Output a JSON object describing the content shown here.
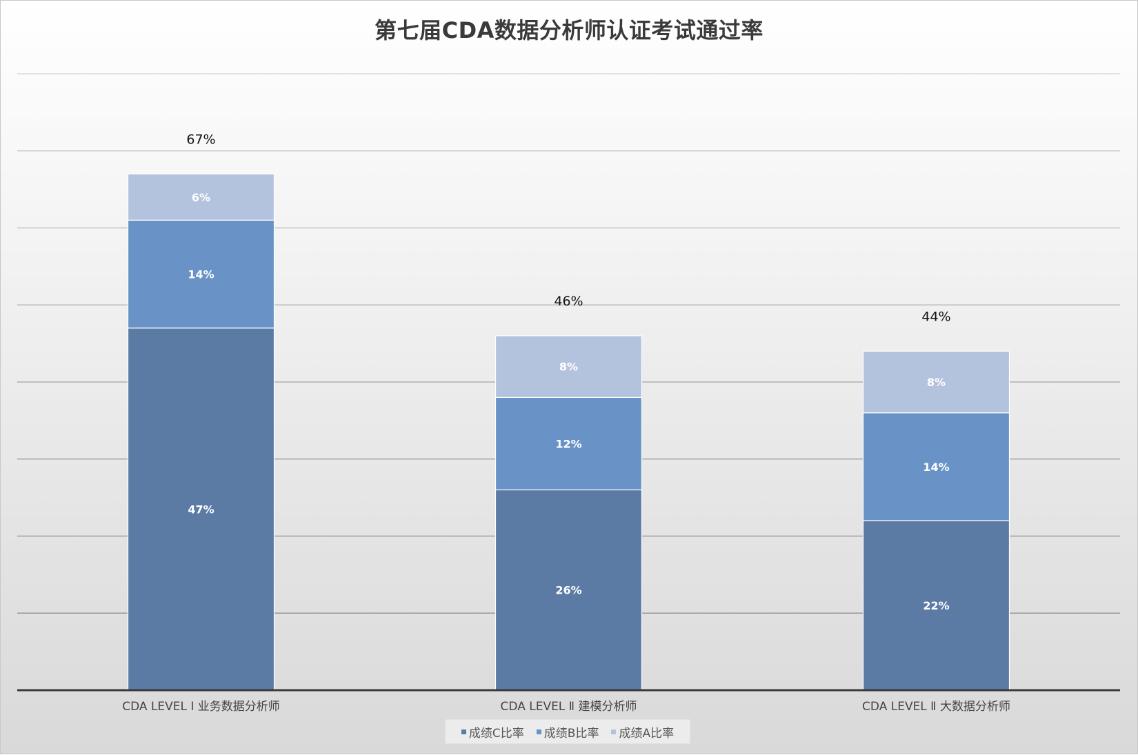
{
  "chart_data": {
    "type": "bar",
    "stacked": true,
    "title": "第七届CDA数据分析师认证考试通过率",
    "categories": [
      "CDA LEVEL Ⅰ 业务数据分析师",
      "CDA LEVEL Ⅱ 建模分析师",
      "CDA LEVEL Ⅱ 大数据分析师"
    ],
    "series": [
      {
        "name": "成绩C比率",
        "color": "#5b7ba5",
        "values": [
          47,
          26,
          22
        ],
        "labels": [
          "47%",
          "26%",
          "22%"
        ]
      },
      {
        "name": "成绩B比率",
        "color": "#6993c6",
        "values": [
          14,
          12,
          14
        ],
        "labels": [
          "14%",
          "12%",
          "14%"
        ]
      },
      {
        "name": "成绩A比率",
        "color": "#b4c3dd",
        "values": [
          6,
          8,
          8
        ],
        "labels": [
          "6%",
          "8%",
          "8%"
        ]
      }
    ],
    "totals": [
      67,
      46,
      44
    ],
    "total_labels": [
      "67%",
      "46%",
      "44%"
    ],
    "ylim": [
      0,
      80
    ],
    "grid": true,
    "legend_position": "bottom",
    "xlabel": "",
    "ylabel": ""
  }
}
